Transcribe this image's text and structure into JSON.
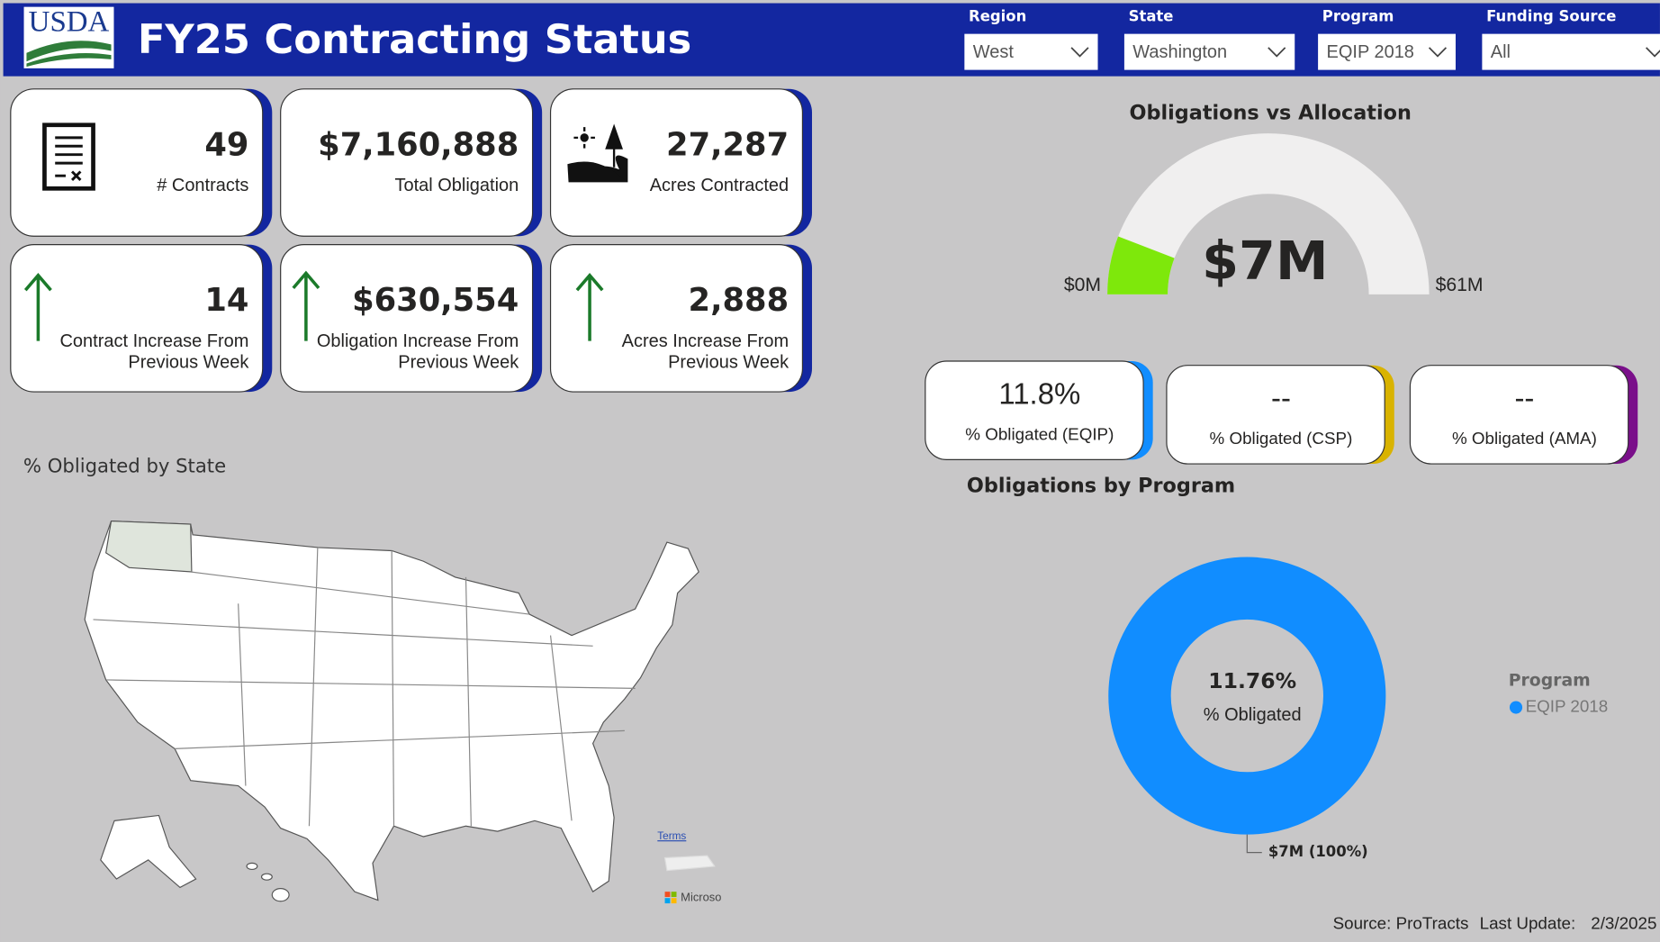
{
  "header": {
    "logo": "USDA",
    "title": "FY25 Contracting Status"
  },
  "filters": [
    {
      "label": "Region",
      "value": "West"
    },
    {
      "label": "State",
      "value": "Washington"
    },
    {
      "label": "Program",
      "value": "EQIP 2018"
    },
    {
      "label": "Funding Source",
      "value": "All"
    }
  ],
  "cards": [
    {
      "value": "49",
      "label": [
        "# Contracts"
      ]
    },
    {
      "value": "$7,160,888",
      "label": [
        "Total Obligation"
      ]
    },
    {
      "value": "27,287",
      "label": [
        "Acres Contracted"
      ]
    },
    {
      "value": "14",
      "label": [
        "Contract Increase From",
        "Previous Week"
      ]
    },
    {
      "value": "$630,554",
      "label": [
        "Obligation Increase From",
        "Previous Week"
      ]
    },
    {
      "value": "2,888",
      "label": [
        "Acres Increase From",
        "Previous Week"
      ]
    }
  ],
  "kpis": [
    {
      "value": "11.8%",
      "label": "% Obligated (EQIP)",
      "color": "#118dff"
    },
    {
      "value": "--",
      "label": "% Obligated (CSP)",
      "color": "#d9b300"
    },
    {
      "value": "--",
      "label": "% Obligated (AMA)",
      "color": "#7a0f8a"
    }
  ],
  "map": {
    "title": "% Obligated by State",
    "terms": "Terms",
    "attribution": "Microsoft"
  },
  "chart_data": [
    {
      "type": "gauge",
      "title": "Obligations vs Allocation",
      "value": 7.16,
      "value_label": "$7M",
      "ylim": [
        0,
        61
      ],
      "yticks": [
        {
          "value": 0,
          "label": "$0M"
        },
        {
          "value": 61,
          "label": "$61M"
        }
      ],
      "color": "#7ee80b",
      "track_color": "#f0efef"
    },
    {
      "type": "donut",
      "title": "Obligations by Program",
      "categories": [
        "EQIP 2018"
      ],
      "values": [
        7.16
      ],
      "value_labels": [
        "$7M (100%)"
      ],
      "colors": [
        "#118dff"
      ],
      "center_value": "11.76%",
      "center_label": "% Obligated",
      "legend_title": "Program"
    }
  ],
  "footer": {
    "source": "Source: ProTracts",
    "update_label": "Last Update:",
    "update_value": "2/3/2025"
  }
}
